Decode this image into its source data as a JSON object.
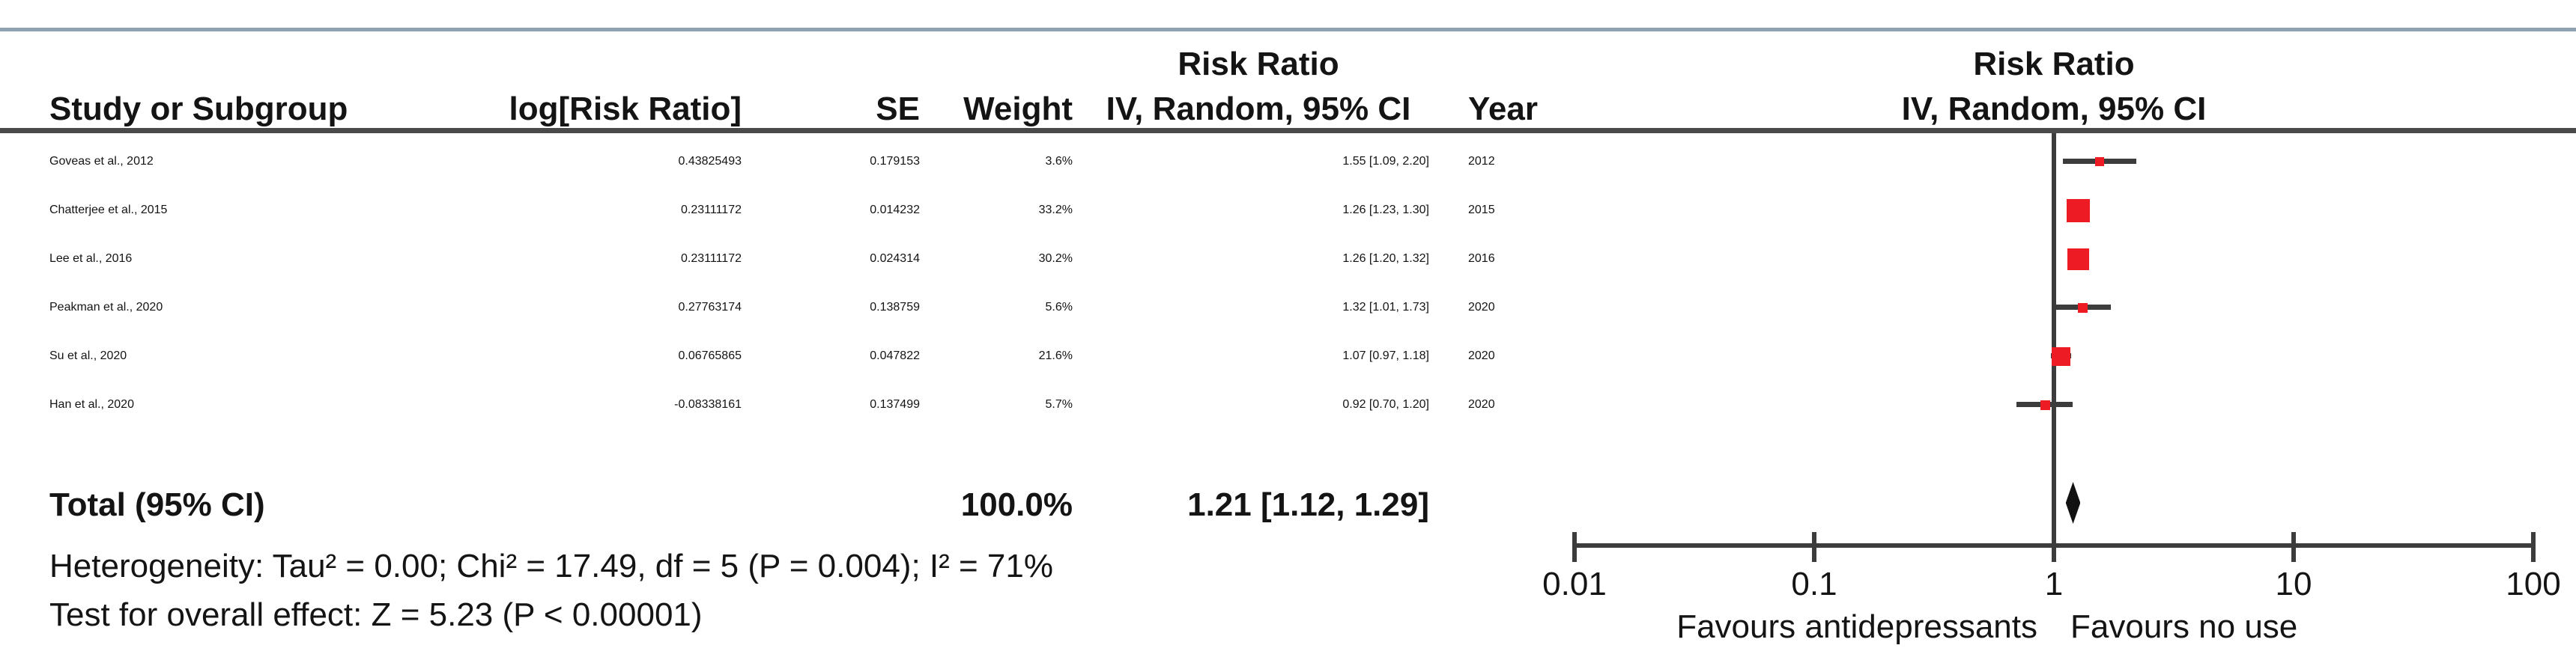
{
  "table_header": {
    "study": "Study or Subgroup",
    "log_rr": "log[Risk Ratio]",
    "se": "SE",
    "weight": "Weight",
    "effect_title": "Risk Ratio",
    "effect_method": "IV, Random, 95% CI",
    "year": "Year",
    "plot_title": "Risk Ratio",
    "plot_method": "IV, Random, 95% CI"
  },
  "chart_data": {
    "type": "forest",
    "effect_measure": "Risk Ratio",
    "model": "IV, Random, 95% CI",
    "x_axis": {
      "scale": "log",
      "ticks": [
        0.01,
        0.1,
        1,
        10,
        100
      ],
      "tick_labels": [
        "0.01",
        "0.1",
        "1",
        "10",
        "100"
      ],
      "left_label": "Favours antidepressants",
      "right_label": "Favours no use"
    },
    "studies": [
      {
        "name": "Goveas et al., 2012",
        "log_rr": "0.43825493",
        "se": "0.179153",
        "weight_pct": 3.6,
        "weight_label": "3.6%",
        "rr": 1.55,
        "ci_low": 1.09,
        "ci_high": 2.2,
        "estimate_label": "1.55 [1.09, 2.20]",
        "year": "2012"
      },
      {
        "name": "Chatterjee et al., 2015",
        "log_rr": "0.23111172",
        "se": "0.014232",
        "weight_pct": 33.2,
        "weight_label": "33.2%",
        "rr": 1.26,
        "ci_low": 1.23,
        "ci_high": 1.3,
        "estimate_label": "1.26 [1.23, 1.30]",
        "year": "2015"
      },
      {
        "name": "Lee et al., 2016",
        "log_rr": "0.23111172",
        "se": "0.024314",
        "weight_pct": 30.2,
        "weight_label": "30.2%",
        "rr": 1.26,
        "ci_low": 1.2,
        "ci_high": 1.32,
        "estimate_label": "1.26 [1.20, 1.32]",
        "year": "2016"
      },
      {
        "name": "Peakman et al., 2020",
        "log_rr": "0.27763174",
        "se": "0.138759",
        "weight_pct": 5.6,
        "weight_label": "5.6%",
        "rr": 1.32,
        "ci_low": 1.01,
        "ci_high": 1.73,
        "estimate_label": "1.32 [1.01, 1.73]",
        "year": "2020"
      },
      {
        "name": "Su et al., 2020",
        "log_rr": "0.06765865",
        "se": "0.047822",
        "weight_pct": 21.6,
        "weight_label": "21.6%",
        "rr": 1.07,
        "ci_low": 0.97,
        "ci_high": 1.18,
        "estimate_label": "1.07 [0.97, 1.18]",
        "year": "2020"
      },
      {
        "name": "Han et al., 2020",
        "log_rr": "-0.08338161",
        "se": "0.137499",
        "weight_pct": 5.7,
        "weight_label": "5.7%",
        "rr": 0.92,
        "ci_low": 0.7,
        "ci_high": 1.2,
        "estimate_label": "0.92 [0.70, 1.20]",
        "year": "2020"
      }
    ],
    "total": {
      "label": "Total (95% CI)",
      "weight_label": "100.0%",
      "rr": 1.21,
      "ci_low": 1.12,
      "ci_high": 1.29,
      "estimate_label": "1.21 [1.12, 1.29]"
    },
    "heterogeneity_text": "Heterogeneity: Tau² = 0.00; Chi² = 17.49, df = 5 (P = 0.004); I² = 71%",
    "overall_effect_text": "Test for overall effect: Z = 5.23 (P < 0.00001)"
  },
  "colors": {
    "marker": "#ed1c24",
    "diamond": "#111111",
    "lines": "#3c3c3c",
    "header_rule": "#4a4a4a",
    "top_rule": "#8fa2b2",
    "text": "#141414"
  }
}
